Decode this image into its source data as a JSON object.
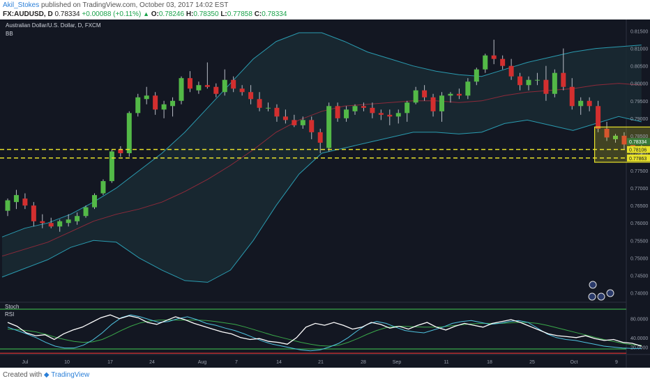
{
  "header": {
    "author": "Akil_Stokes",
    "published": "published on TradingView.com, October 03, 2017 14:02 EST",
    "symbol": "FX:AUDUSD, D",
    "last": "0.78334",
    "change": "+0.00088 (+0.11%)",
    "open_label": "O:",
    "open": "0.78246",
    "high_label": "H:",
    "high": "0.78350",
    "low_label": "L:",
    "low": "0.77858",
    "close_label": "C:",
    "close": "0.78334"
  },
  "legend": {
    "instrument": "Australian Dollar/U.S. Dollar, D, FXCM",
    "bb": "BB",
    "stoch": "Stoch",
    "rsi": "RSI"
  },
  "footer": {
    "created_with": "Created with",
    "brand": "TradingView"
  },
  "colors": {
    "background": "#131722",
    "up": "#53b947",
    "down": "#d32f2f",
    "bb_band": "#2a9bb0",
    "bb_basis": "#8e2a3a",
    "bb_fill": "#1a2a33",
    "level": "#e8e22a",
    "box": "#e8e22a",
    "stoch_k": "#4fc3e0",
    "stoch_d": "#3aa94a",
    "rsi": "#ffffff"
  },
  "chart_data": {
    "type": "candlestick",
    "instrument": "AUDUSD",
    "timeframe": "D",
    "x_labels": [
      "Jul",
      "10",
      "17",
      "24",
      "Aug",
      "7",
      "14",
      "21",
      "28",
      "Sep",
      "11",
      "18",
      "25",
      "Oct",
      "9"
    ],
    "y_ticks": [
      "0.81500",
      "0.81000",
      "0.80500",
      "0.80000",
      "0.79500",
      "0.79000",
      "0.78500",
      "0.78000",
      "0.77500",
      "0.77000",
      "0.76500",
      "0.76000",
      "0.75500",
      "0.75000",
      "0.74500",
      "0.74000"
    ],
    "ylim": [
      0.7385,
      0.8175
    ],
    "price_labels": [
      {
        "text": "0.78334",
        "value": 0.78334
      },
      {
        "text": "0.78106",
        "value": 0.78106
      },
      {
        "text": "0.77863",
        "value": 0.77863
      }
    ],
    "levels": [
      0.78106,
      0.77863
    ],
    "candles": [
      [
        0.7635,
        0.767,
        0.762,
        0.7665
      ],
      [
        0.766,
        0.7695,
        0.764,
        0.768
      ],
      [
        0.767,
        0.7685,
        0.764,
        0.765
      ],
      [
        0.765,
        0.766,
        0.759,
        0.7605
      ],
      [
        0.7605,
        0.7625,
        0.7585,
        0.76
      ],
      [
        0.76,
        0.7615,
        0.7585,
        0.759
      ],
      [
        0.759,
        0.761,
        0.7575,
        0.7605
      ],
      [
        0.76,
        0.7625,
        0.759,
        0.761
      ],
      [
        0.7605,
        0.763,
        0.7595,
        0.762
      ],
      [
        0.762,
        0.765,
        0.7615,
        0.7645
      ],
      [
        0.7645,
        0.7685,
        0.764,
        0.768
      ],
      [
        0.7685,
        0.7725,
        0.768,
        0.772
      ],
      [
        0.772,
        0.781,
        0.7715,
        0.7805
      ],
      [
        0.781,
        0.782,
        0.779,
        0.78
      ],
      [
        0.78,
        0.792,
        0.779,
        0.7915
      ],
      [
        0.7915,
        0.797,
        0.7905,
        0.796
      ],
      [
        0.7955,
        0.799,
        0.794,
        0.7965
      ],
      [
        0.7965,
        0.7975,
        0.791,
        0.7925
      ],
      [
        0.7925,
        0.795,
        0.79,
        0.794
      ],
      [
        0.7935,
        0.796,
        0.7905,
        0.795
      ],
      [
        0.795,
        0.802,
        0.794,
        0.8015
      ],
      [
        0.8015,
        0.8035,
        0.7975,
        0.7985
      ],
      [
        0.798,
        0.8005,
        0.797,
        0.7995
      ],
      [
        0.7995,
        0.806,
        0.7985,
        0.799
      ],
      [
        0.799,
        0.8,
        0.796,
        0.797
      ],
      [
        0.7975,
        0.804,
        0.7965,
        0.801
      ],
      [
        0.801,
        0.802,
        0.7975,
        0.7985
      ],
      [
        0.7985,
        0.7995,
        0.7965,
        0.7975
      ],
      [
        0.7975,
        0.7995,
        0.794,
        0.7955
      ],
      [
        0.7955,
        0.7975,
        0.792,
        0.793
      ],
      [
        0.793,
        0.7945,
        0.792,
        0.793
      ],
      [
        0.793,
        0.794,
        0.789,
        0.7905
      ],
      [
        0.7905,
        0.7925,
        0.7885,
        0.7895
      ],
      [
        0.7895,
        0.791,
        0.7875,
        0.788
      ],
      [
        0.788,
        0.7905,
        0.787,
        0.7895
      ],
      [
        0.7895,
        0.7905,
        0.784,
        0.786
      ],
      [
        0.786,
        0.787,
        0.78,
        0.783
      ],
      [
        0.7815,
        0.7945,
        0.7805,
        0.7935
      ],
      [
        0.7935,
        0.7945,
        0.789,
        0.79
      ],
      [
        0.79,
        0.7935,
        0.789,
        0.7925
      ],
      [
        0.792,
        0.794,
        0.791,
        0.7935
      ],
      [
        0.7935,
        0.7945,
        0.792,
        0.793
      ],
      [
        0.793,
        0.7945,
        0.79,
        0.7915
      ],
      [
        0.7915,
        0.7925,
        0.7895,
        0.791
      ],
      [
        0.791,
        0.7925,
        0.788,
        0.7905
      ],
      [
        0.7905,
        0.7925,
        0.7885,
        0.7915
      ],
      [
        0.7915,
        0.795,
        0.789,
        0.7945
      ],
      [
        0.7945,
        0.799,
        0.794,
        0.798
      ],
      [
        0.798,
        0.7995,
        0.795,
        0.796
      ],
      [
        0.796,
        0.797,
        0.7905,
        0.792
      ],
      [
        0.792,
        0.7975,
        0.789,
        0.7965
      ],
      [
        0.7965,
        0.7975,
        0.7945,
        0.797
      ],
      [
        0.797,
        0.7985,
        0.7955,
        0.7965
      ],
      [
        0.7965,
        0.8015,
        0.7955,
        0.8005
      ],
      [
        0.8005,
        0.8045,
        0.7995,
        0.804
      ],
      [
        0.804,
        0.8085,
        0.803,
        0.808
      ],
      [
        0.808,
        0.8125,
        0.8055,
        0.807
      ],
      [
        0.807,
        0.808,
        0.804,
        0.805
      ],
      [
        0.805,
        0.807,
        0.801,
        0.802
      ],
      [
        0.802,
        0.803,
        0.798,
        0.7995
      ],
      [
        0.7995,
        0.802,
        0.798,
        0.801
      ],
      [
        0.801,
        0.803,
        0.7995,
        0.801
      ],
      [
        0.801,
        0.805,
        0.795,
        0.797
      ],
      [
        0.797,
        0.804,
        0.796,
        0.803
      ],
      [
        0.803,
        0.81,
        0.798,
        0.799
      ],
      [
        0.799,
        0.8015,
        0.7925,
        0.7935
      ],
      [
        0.7935,
        0.796,
        0.791,
        0.795
      ],
      [
        0.795,
        0.796,
        0.792,
        0.7935
      ],
      [
        0.7935,
        0.795,
        0.786,
        0.787
      ],
      [
        0.787,
        0.789,
        0.7835,
        0.7845
      ],
      [
        0.784,
        0.7855,
        0.783,
        0.785
      ],
      [
        0.785,
        0.786,
        0.781,
        0.7825
      ],
      [
        0.7825,
        0.784,
        0.78,
        0.7815
      ],
      [
        0.7825,
        0.7835,
        0.7786,
        0.7833
      ]
    ],
    "bollinger": {
      "upper": [
        0.756,
        0.7585,
        0.76,
        0.7625,
        0.766,
        0.77,
        0.775,
        0.78,
        0.786,
        0.793,
        0.8,
        0.807,
        0.812,
        0.8145,
        0.8145,
        0.812,
        0.809,
        0.807,
        0.805,
        0.8035,
        0.8025,
        0.802,
        0.804,
        0.806,
        0.8075,
        0.809,
        0.81,
        0.8105,
        0.811
      ],
      "lower": [
        0.7445,
        0.747,
        0.7495,
        0.753,
        0.755,
        0.7545,
        0.75,
        0.7465,
        0.7435,
        0.743,
        0.7465,
        0.755,
        0.765,
        0.774,
        0.78,
        0.7815,
        0.783,
        0.7845,
        0.786,
        0.786,
        0.7855,
        0.786,
        0.7885,
        0.7895,
        0.788,
        0.7865,
        0.7885,
        0.7905,
        0.789
      ],
      "basis": [
        0.7505,
        0.7525,
        0.7545,
        0.7575,
        0.7605,
        0.7625,
        0.764,
        0.766,
        0.769,
        0.7725,
        0.7765,
        0.781,
        0.786,
        0.7895,
        0.792,
        0.7935,
        0.794,
        0.7945,
        0.795,
        0.795,
        0.7945,
        0.795,
        0.7965,
        0.7975,
        0.798,
        0.7985,
        0.7995,
        0.8,
        0.7995
      ]
    },
    "oscillator_levels": [
      {
        "text": "80.0000",
        "value": 80
      },
      {
        "text": "40.0000",
        "value": 40
      },
      {
        "text": "20.0000",
        "value": 20
      }
    ],
    "stoch_k": [
      62,
      55,
      48,
      40,
      30,
      22,
      18,
      18,
      24,
      35,
      50,
      68,
      82,
      88,
      84,
      78,
      72,
      74,
      80,
      84,
      78,
      70,
      66,
      60,
      55,
      48,
      40,
      32,
      26,
      22,
      18,
      14,
      12,
      14,
      20,
      28,
      40,
      55,
      68,
      74,
      70,
      62,
      55,
      52,
      50,
      56,
      62,
      70,
      74,
      76,
      72,
      68,
      70,
      74,
      76,
      72,
      60,
      48,
      40,
      36,
      34,
      30,
      26,
      22,
      20,
      18,
      17,
      17
    ],
    "stoch_d": [
      58,
      57,
      55,
      52,
      47,
      41,
      36,
      32,
      30,
      31,
      36,
      45,
      55,
      64,
      71,
      75,
      77,
      77,
      77,
      77,
      77,
      76,
      74,
      71,
      68,
      63,
      57,
      51,
      45,
      40,
      35,
      30,
      26,
      23,
      22,
      24,
      30,
      38,
      47,
      55,
      61,
      64,
      64,
      63,
      62,
      62,
      63,
      65,
      67,
      69,
      70,
      70,
      70,
      71,
      72,
      72,
      70,
      66,
      61,
      56,
      51,
      46,
      41,
      36,
      32,
      28,
      25,
      24
    ],
    "rsi": [
      72,
      64,
      50,
      44,
      46,
      36,
      48,
      56,
      62,
      72,
      82,
      88,
      80,
      86,
      82,
      72,
      68,
      76,
      84,
      78,
      70,
      64,
      58,
      52,
      48,
      40,
      36,
      38,
      32,
      30,
      26,
      40,
      62,
      70,
      66,
      72,
      66,
      58,
      62,
      72,
      68,
      60,
      64,
      58,
      66,
      72,
      62,
      56,
      64,
      70,
      66,
      62,
      70,
      74,
      78,
      72,
      64,
      56,
      48,
      44,
      42,
      40,
      44,
      38,
      34,
      36,
      30,
      28,
      22
    ]
  }
}
